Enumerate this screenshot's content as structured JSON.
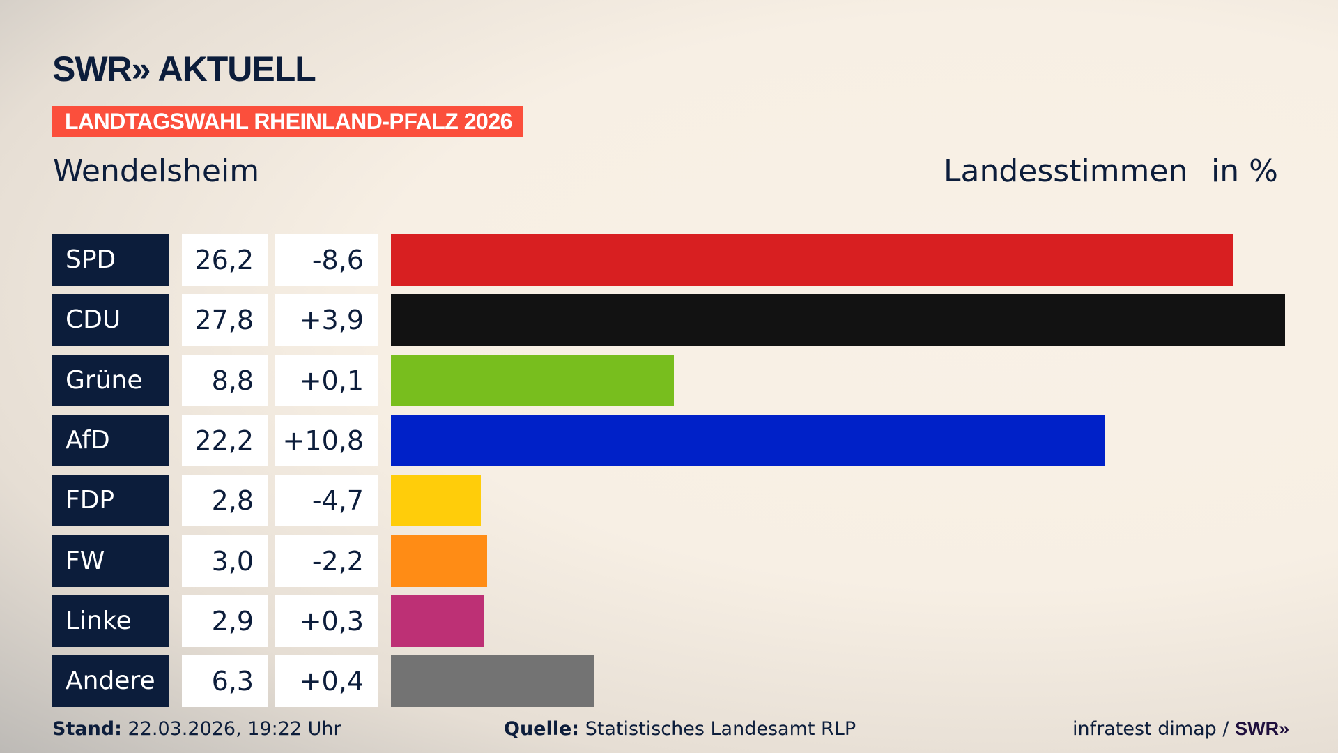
{
  "header": {
    "logo": "SWR» AKTUELL",
    "banner": "LANDTAGSWAHL RHEINLAND-PFALZ 2026",
    "place": "Wendelsheim",
    "measure": "Landesstimmen",
    "unit": "in %"
  },
  "chart_data": {
    "type": "bar",
    "orientation": "horizontal",
    "categories": [
      "SPD",
      "CDU",
      "Grüne",
      "AfD",
      "FDP",
      "FW",
      "Linke",
      "Andere"
    ],
    "values": [
      26.2,
      27.8,
      8.8,
      22.2,
      2.8,
      3.0,
      2.9,
      6.3
    ],
    "value_labels": [
      "26,2",
      "27,8",
      "8,8",
      "22,2",
      "2,8",
      "3,0",
      "2,9",
      "6,3"
    ],
    "change_labels": [
      "-8,6",
      "+3,9",
      "+0,1",
      "+10,8",
      "-4,7",
      "-2,2",
      "+0,3",
      "+0,4"
    ],
    "colors": [
      "#d81f21",
      "#121212",
      "#78be1e",
      "#0021c8",
      "#ffcd0a",
      "#ff8c15",
      "#bd3075",
      "#737373"
    ],
    "ylabel": "Landesstimmen",
    "unit": "in %"
  },
  "footer": {
    "stand_label": "Stand:",
    "stand_value": "22.03.2026, 19:22 Uhr",
    "source_label": "Quelle:",
    "source_value": "Statistisches Landesamt RLP",
    "credit": "infratest dimap /",
    "credit_logo": "SWR»"
  }
}
